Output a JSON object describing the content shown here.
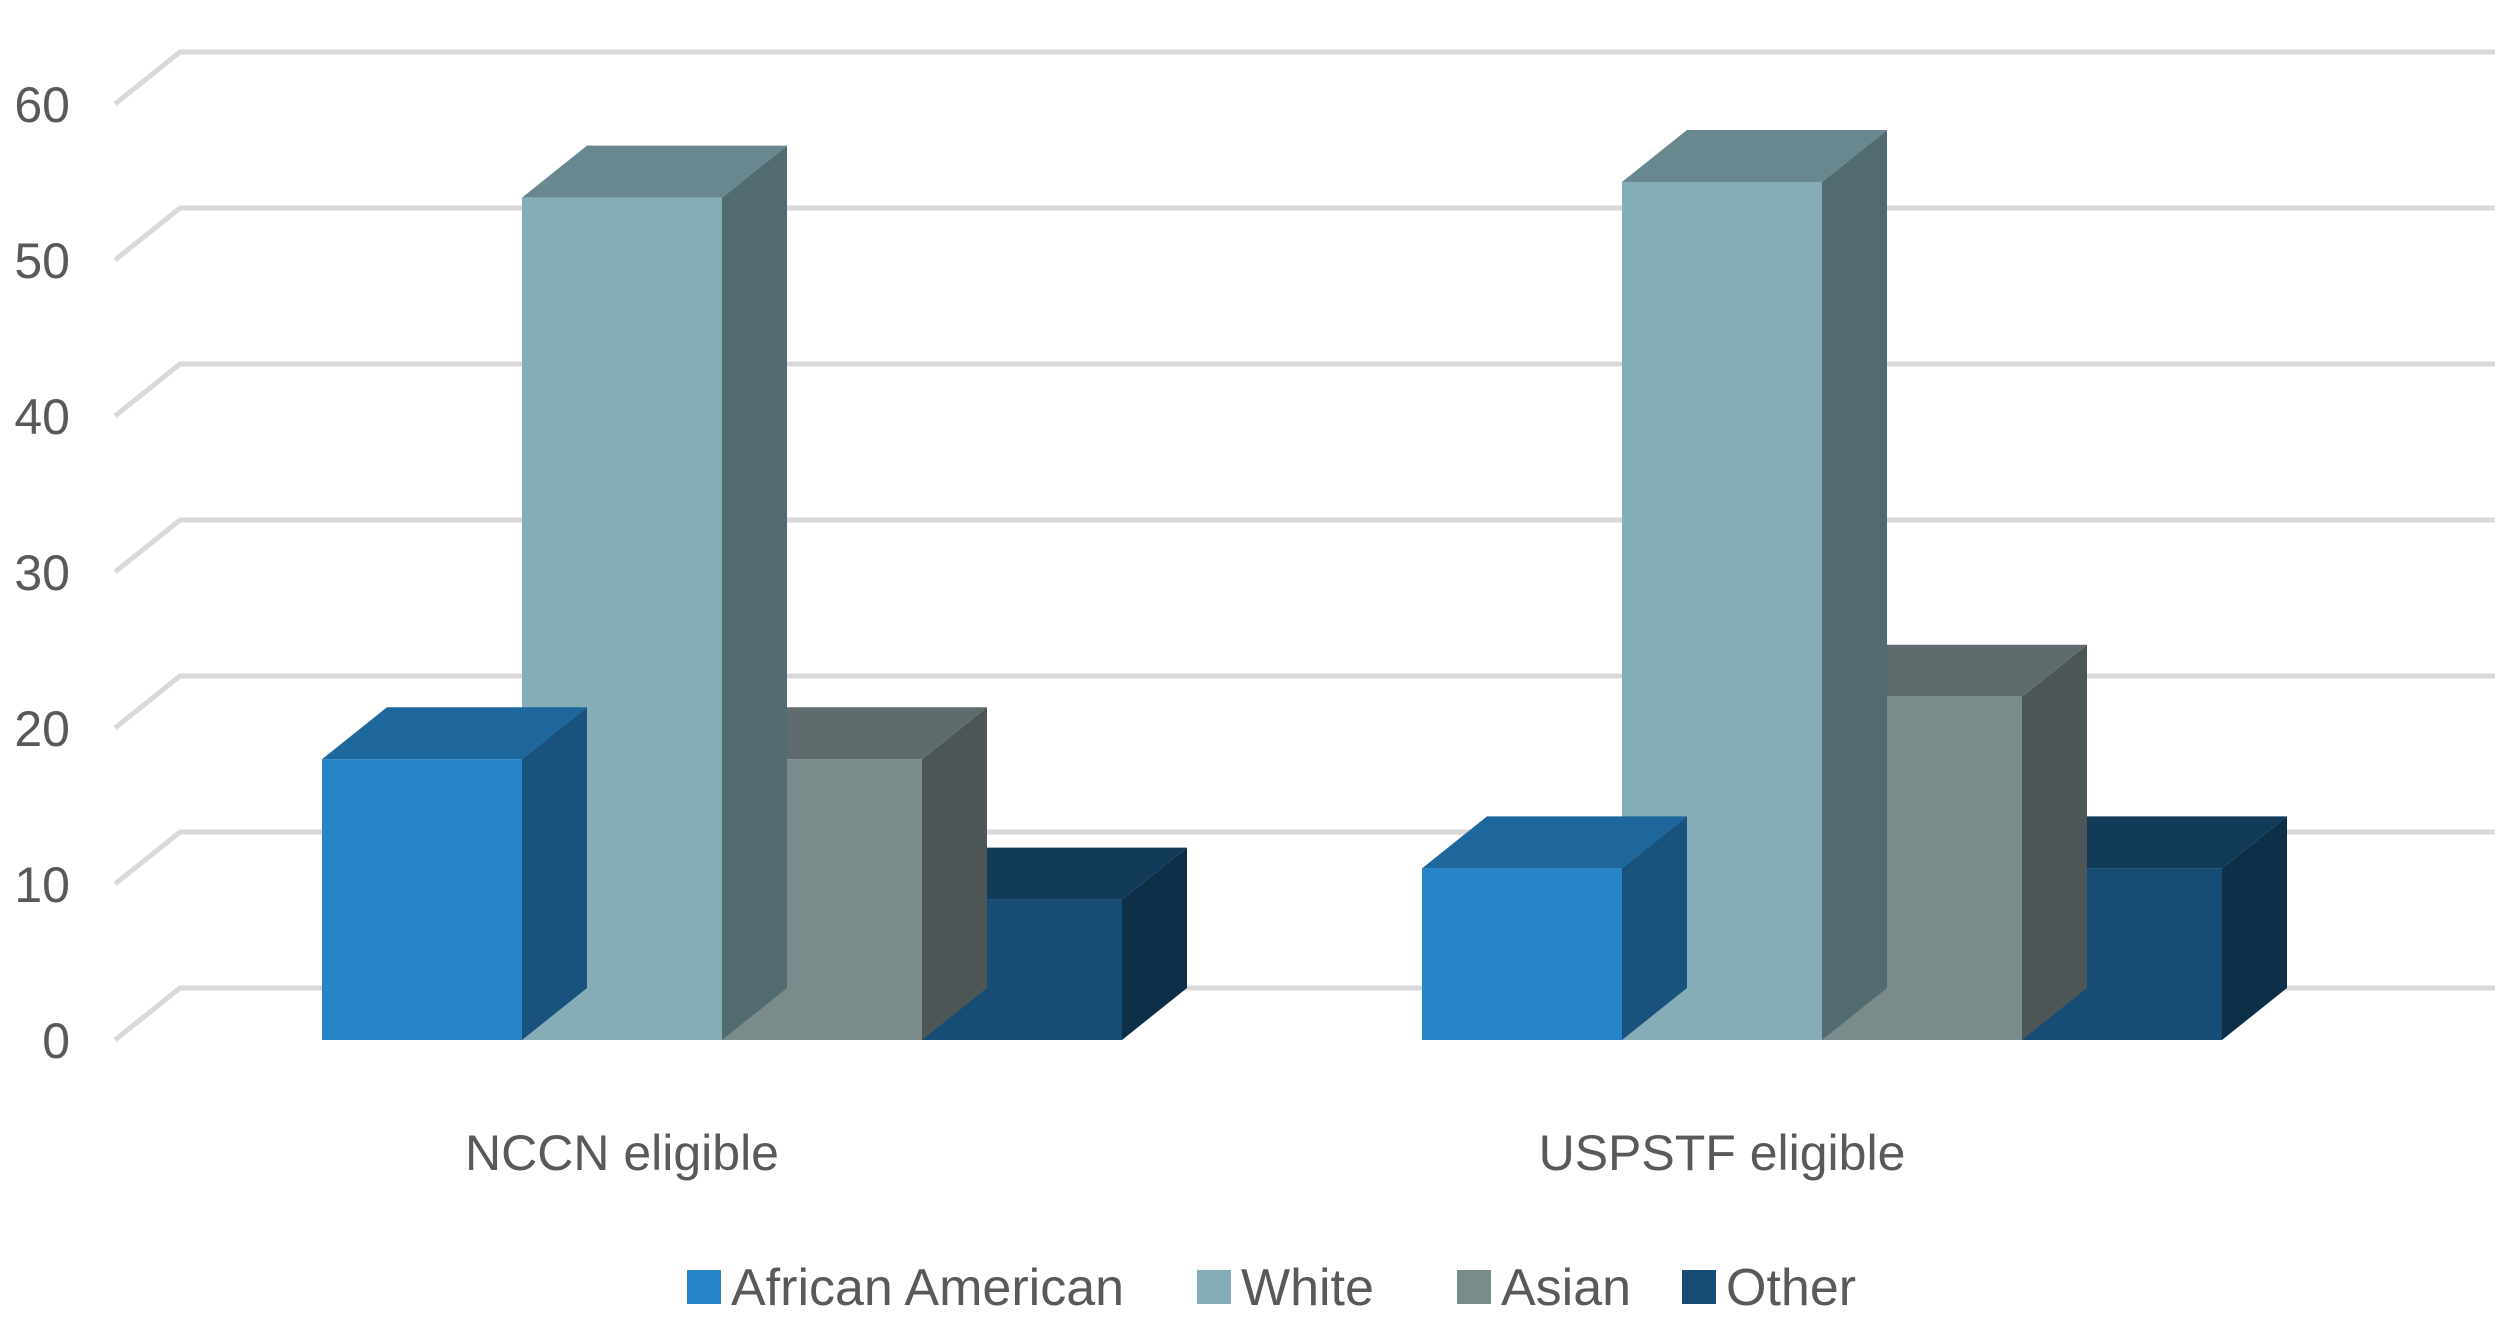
{
  "chart_data": {
    "type": "bar",
    "style": "3d-clustered-column",
    "title": "",
    "xlabel": "",
    "ylabel": "",
    "categories": [
      "NCCN eligible",
      "USPSTF eligible"
    ],
    "series": [
      {
        "name": "African American",
        "values": [
          18,
          11
        ],
        "color": "#2784c9"
      },
      {
        "name": "White",
        "values": [
          54,
          55
        ],
        "color": "#85adb7"
      },
      {
        "name": "Asian",
        "values": [
          18,
          22
        ],
        "color": "#7a8b8c"
      },
      {
        "name": "Other",
        "values": [
          9,
          11
        ],
        "color": "#174c74"
      }
    ],
    "ylim": [
      0,
      60
    ],
    "yticks": [
      "0",
      "10",
      "20",
      "30",
      "40",
      "50",
      "60"
    ],
    "grid": true,
    "legend_position": "bottom"
  }
}
